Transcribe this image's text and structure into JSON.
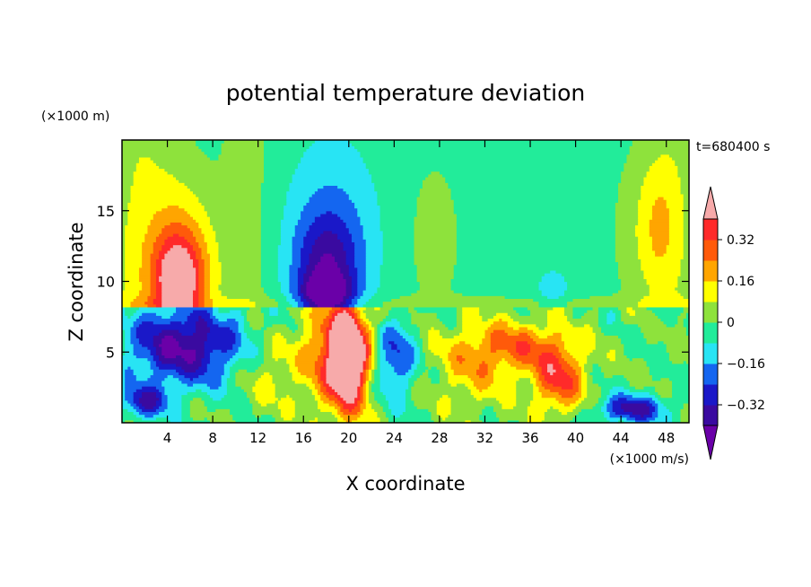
{
  "chart_data": {
    "type": "heatmap",
    "title": "potential temperature deviation",
    "time_label": "t=680400 s",
    "xlabel": "X coordinate",
    "ylabel": "Z coordinate",
    "x_unit": "(×1000 m/s)",
    "y_unit": "(×1000 m)",
    "xlim": [
      0,
      50
    ],
    "ylim": [
      0,
      20
    ],
    "x_ticks": [
      4,
      8,
      12,
      16,
      20,
      24,
      28,
      32,
      36,
      40,
      44,
      48
    ],
    "y_ticks": [
      5,
      10,
      15
    ],
    "grid": false,
    "colorbar": {
      "placement": "right",
      "levels": [
        -0.4,
        -0.32,
        -0.24,
        -0.16,
        -0.08,
        0,
        0.08,
        0.16,
        0.24,
        0.32,
        0.4
      ],
      "tick_values": [
        0.32,
        0.16,
        0,
        -0.16,
        -0.32
      ],
      "tick_labels": [
        "0.32",
        "0.16",
        "0",
        "−0.16",
        "−0.32"
      ],
      "colors": [
        "#6a00a8",
        "#3a0aa0",
        "#1a18c8",
        "#1466f0",
        "#28e4f4",
        "#22ec9a",
        "#8ee23c",
        "#ffff00",
        "#ffa500",
        "#ff5a0a",
        "#ff2a2a",
        "#f7aaaa"
      ]
    },
    "features": [
      {
        "x": 5.2,
        "z": 11.0,
        "value": 0.22,
        "rx": 3.2,
        "rz": 5.5
      },
      {
        "x": 5.0,
        "z": 10.0,
        "value": 0.3,
        "rx": 2.0,
        "rz": 3.0
      },
      {
        "x": 18.5,
        "z": 13.5,
        "value": -0.13,
        "rx": 4.0,
        "rz": 6.5
      },
      {
        "x": 18.0,
        "z": 11.0,
        "value": -0.21,
        "rx": 2.8,
        "rz": 3.5
      },
      {
        "x": 18.0,
        "z": 9.0,
        "value": -0.29,
        "rx": 2.2,
        "rz": 1.5
      },
      {
        "x": 27.5,
        "z": 13.0,
        "value": 0.05,
        "rx": 2.5,
        "rz": 6.0
      },
      {
        "x": 46.0,
        "z": 13.5,
        "value": 0.07,
        "rx": 2.5,
        "rz": 6.0
      },
      {
        "x": 47.5,
        "z": 14.0,
        "value": 0.12,
        "rx": 1.8,
        "rz": 5.5
      },
      {
        "x": 5.5,
        "z": 5.5,
        "value": -0.36,
        "rx": 5.0,
        "rz": 2.8
      },
      {
        "x": 20.0,
        "z": 4.5,
        "value": 0.37,
        "rx": 1.6,
        "rz": 3.8
      },
      {
        "x": 19.0,
        "z": 5.0,
        "value": 0.3,
        "rx": 3.0,
        "rz": 3.8
      },
      {
        "x": 24.0,
        "z": 4.5,
        "value": -0.24,
        "rx": 1.8,
        "rz": 2.8
      },
      {
        "x": 31.0,
        "z": 4.0,
        "value": 0.14,
        "rx": 3.5,
        "rz": 3.0
      },
      {
        "x": 35.5,
        "z": 5.5,
        "value": 0.2,
        "rx": 4.5,
        "rz": 1.8
      },
      {
        "x": 38.5,
        "z": 3.0,
        "value": 0.28,
        "rx": 2.3,
        "rz": 2.3
      },
      {
        "x": 45.0,
        "z": 1.0,
        "value": -0.3,
        "rx": 3.0,
        "rz": 1.0
      },
      {
        "x": 2.0,
        "z": 1.5,
        "value": -0.26,
        "rx": 2.0,
        "rz": 1.2
      },
      {
        "x": 13.0,
        "z": 3.5,
        "value": 0.1,
        "rx": 2.5,
        "rz": 2.5
      }
    ]
  }
}
